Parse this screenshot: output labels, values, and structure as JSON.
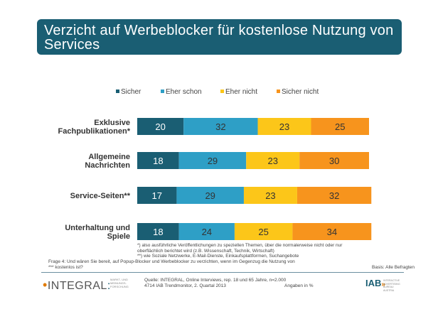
{
  "title": "Verzicht auf Werbeblocker für kostenlose Nutzung von Services",
  "colors": {
    "header_bg": "#1a5e73",
    "sicher": "#1a5e73",
    "eher_schon": "#2e9fc6",
    "eher_nicht": "#fcc619",
    "sicher_nicht": "#f7941d"
  },
  "chart_data": {
    "type": "bar",
    "orientation": "horizontal",
    "stacked": true,
    "percent": true,
    "categories": [
      "Exklusive Fachpublikationen*",
      "Allgemeine Nachrichten",
      "Service-Seiten**",
      "Unterhaltung und Spiele"
    ],
    "category_lines": [
      [
        "Exklusive",
        "Fachpublikationen*"
      ],
      [
        "Allgemeine",
        "Nachrichten"
      ],
      [
        "Service-Seiten**"
      ],
      [
        "Unterhaltung und",
        "Spiele"
      ]
    ],
    "series": [
      {
        "name": "Sicher",
        "color": "#1a5e73",
        "values": [
          20,
          18,
          17,
          18
        ]
      },
      {
        "name": "Eher schon",
        "color": "#2e9fc6",
        "values": [
          32,
          29,
          29,
          24
        ]
      },
      {
        "name": "Eher nicht",
        "color": "#fcc619",
        "values": [
          23,
          23,
          23,
          25
        ]
      },
      {
        "name": "Sicher nicht",
        "color": "#f7941d",
        "values": [
          25,
          30,
          32,
          34
        ]
      }
    ],
    "legend": "top"
  },
  "footnotes": {
    "line1": "*) also ausführliche Veröffentlichungen zu speziellen Themen, über die normalerweise nicht oder nur",
    "line2": "oberflächlich berichtet wird (z.B. Wissenschaft, Technik, Wirtschaft)",
    "line3": "**) wie Soziale Netzwerke, E-Mail-Dienste, Einkaufsplattformen, Suchangebote"
  },
  "question": {
    "line1": "Frage 4: Und wären Sie bereit, auf Popup-Blocker und Werbeblocker zu verzichten, wenn im Gegenzug die Nutzung von",
    "line2": "*** kostenlos ist?"
  },
  "basis": "Basis: Alle Befragten",
  "logo_integral": {
    "name": "INTEGRAL",
    "sub1": "MARKT- UND",
    "sub2": "MEINUNGS-",
    "sub3": "FORSCHUNG"
  },
  "source": {
    "line1": "Quelle: INTEGRAL, Online Interviews, rep. 18 und 65 Jahre, n=2.000",
    "line2": "4714 IAB Trendmonitor, 2. Quartal 2013"
  },
  "angaben": "Angaben in %",
  "logo_iab": {
    "name": "IAB",
    "sub1": "INTERACTIVE",
    "sub2": "ADVERTISING BUREAU",
    "sub3": "AUSTRIA"
  }
}
